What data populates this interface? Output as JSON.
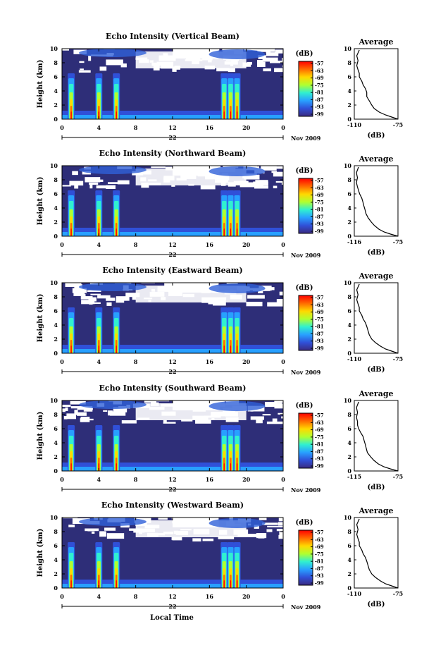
{
  "figure": {
    "xlabel": "Local Time",
    "ylabel": "Height (km)",
    "date_label": "Nov 2009",
    "day_label": "22",
    "colorbar_unit": "(dB)",
    "colorbar_ticks": [
      "-57",
      "-63",
      "-69",
      "-75",
      "-81",
      "-87",
      "-93",
      "-99"
    ],
    "colorbar_colors": [
      "#ff0000",
      "#ff6a00",
      "#ffd800",
      "#b0ff30",
      "#30f0d0",
      "#28a0ff",
      "#3050d8",
      "#3a2a80"
    ],
    "panel_bg": "#2e2e78",
    "profile_title": "Average",
    "profile_xlabel": "(dB)"
  },
  "chart_data": [
    {
      "type": "heatmap",
      "title": "Echo Intensity (Vertical Beam)",
      "ylabel": "Height (km)",
      "x_ticks": [
        "0",
        "4",
        "8",
        "12",
        "16",
        "20",
        "0"
      ],
      "y_ticks": [
        "0",
        "2",
        "4",
        "6",
        "8",
        "10"
      ],
      "xlim": [
        0,
        24
      ],
      "ylim": [
        0,
        10
      ],
      "clim": [
        -99,
        -57
      ],
      "convective_cells_hours": [
        1.0,
        4.0,
        5.9,
        17.6,
        18.3,
        19.0
      ],
      "profile": {
        "type": "line",
        "title": "Average",
        "x_ticks": [
          "-110",
          "-75"
        ],
        "xlim": [
          -110,
          -75
        ],
        "x": [
          -75,
          -80,
          -85,
          -90,
          -94,
          -96,
          -98,
          -100,
          -100,
          -101,
          -103,
          -104,
          -106,
          -106,
          -107,
          -108,
          -107,
          -108,
          -106
        ],
        "y": [
          0,
          0.3,
          0.6,
          1.0,
          1.5,
          2.0,
          2.6,
          3.2,
          3.8,
          4.3,
          4.9,
          5.4,
          6.0,
          6.5,
          7.0,
          7.6,
          8.3,
          9.0,
          9.8
        ]
      }
    },
    {
      "type": "heatmap",
      "title": "Echo Intensity (Northward Beam)",
      "ylabel": "Height (km)",
      "x_ticks": [
        "0",
        "4",
        "8",
        "12",
        "16",
        "20",
        "0"
      ],
      "y_ticks": [
        "0",
        "2",
        "4",
        "6",
        "8",
        "10"
      ],
      "xlim": [
        0,
        24
      ],
      "ylim": [
        0,
        10
      ],
      "clim": [
        -99,
        -57
      ],
      "convective_cells_hours": [
        1.0,
        4.0,
        5.9,
        17.6,
        18.3,
        19.0
      ],
      "profile": {
        "type": "line",
        "title": "Average",
        "x_ticks": [
          "-116",
          "-75"
        ],
        "xlim": [
          -116,
          -75
        ],
        "x": [
          -75,
          -82,
          -88,
          -93,
          -97,
          -100,
          -103,
          -105,
          -106,
          -107,
          -108,
          -109,
          -111,
          -112,
          -113,
          -114,
          -113,
          -114,
          -112
        ],
        "y": [
          0,
          0.3,
          0.6,
          1.0,
          1.5,
          2.0,
          2.6,
          3.2,
          3.8,
          4.3,
          4.9,
          5.4,
          6.0,
          6.5,
          7.0,
          7.6,
          8.3,
          9.0,
          9.8
        ]
      }
    },
    {
      "type": "heatmap",
      "title": "Echo Intensity (Eastward Beam)",
      "ylabel": "Height (km)",
      "x_ticks": [
        "0",
        "4",
        "8",
        "12",
        "16",
        "20",
        "0"
      ],
      "y_ticks": [
        "0",
        "2",
        "4",
        "6",
        "8",
        "10"
      ],
      "xlim": [
        0,
        24
      ],
      "ylim": [
        0,
        10
      ],
      "clim": [
        -99,
        -57
      ],
      "convective_cells_hours": [
        1.0,
        4.0,
        5.9,
        17.6,
        18.3,
        19.0
      ],
      "profile": {
        "type": "line",
        "title": "Average",
        "x_ticks": [
          "-110",
          "-75"
        ],
        "xlim": [
          -110,
          -75
        ],
        "x": [
          -75,
          -80,
          -85,
          -89,
          -93,
          -96,
          -98,
          -99,
          -100,
          -101,
          -103,
          -104,
          -106,
          -106,
          -107,
          -108,
          -107,
          -108,
          -106
        ],
        "y": [
          0,
          0.3,
          0.6,
          1.0,
          1.5,
          2.0,
          2.6,
          3.2,
          3.8,
          4.3,
          4.9,
          5.4,
          6.0,
          6.5,
          7.0,
          7.6,
          8.3,
          9.0,
          9.8
        ]
      }
    },
    {
      "type": "heatmap",
      "title": "Echo Intensity (Southward Beam)",
      "ylabel": "Height (km)",
      "x_ticks": [
        "0",
        "4",
        "8",
        "12",
        "16",
        "20",
        "0"
      ],
      "y_ticks": [
        "0",
        "2",
        "4",
        "6",
        "8",
        "10"
      ],
      "xlim": [
        0,
        24
      ],
      "ylim": [
        0,
        10
      ],
      "clim": [
        -99,
        -57
      ],
      "convective_cells_hours": [
        1.0,
        4.0,
        5.9,
        17.6,
        18.3,
        19.0
      ],
      "profile": {
        "type": "line",
        "title": "Average",
        "x_ticks": [
          "-115",
          "-75"
        ],
        "xlim": [
          -115,
          -75
        ],
        "x": [
          -75,
          -82,
          -88,
          -93,
          -97,
          -100,
          -103,
          -104,
          -105,
          -106,
          -107,
          -109,
          -111,
          -112,
          -112,
          -113,
          -112,
          -113,
          -111
        ],
        "y": [
          0,
          0.3,
          0.6,
          1.0,
          1.5,
          2.0,
          2.6,
          3.2,
          3.8,
          4.3,
          4.9,
          5.4,
          6.0,
          6.5,
          7.0,
          7.6,
          8.3,
          9.0,
          9.8
        ]
      }
    },
    {
      "type": "heatmap",
      "title": "Echo Intensity (Westward Beam)",
      "ylabel": "Height (km)",
      "x_ticks": [
        "0",
        "4",
        "8",
        "12",
        "16",
        "20",
        "0"
      ],
      "y_ticks": [
        "0",
        "2",
        "4",
        "6",
        "8",
        "10"
      ],
      "xlim": [
        0,
        24
      ],
      "ylim": [
        0,
        10
      ],
      "clim": [
        -99,
        -57
      ],
      "convective_cells_hours": [
        1.0,
        4.0,
        5.9,
        17.6,
        18.3,
        19.0
      ],
      "profile": {
        "type": "line",
        "title": "Average",
        "x_ticks": [
          "-110",
          "-75"
        ],
        "xlim": [
          -110,
          -75
        ],
        "x": [
          -75,
          -80,
          -85,
          -89,
          -93,
          -96,
          -98,
          -99,
          -100,
          -101,
          -103,
          -104,
          -106,
          -106,
          -107,
          -108,
          -107,
          -108,
          -106
        ],
        "y": [
          0,
          0.3,
          0.6,
          1.0,
          1.5,
          2.0,
          2.6,
          3.2,
          3.8,
          4.3,
          4.9,
          5.4,
          6.0,
          6.5,
          7.0,
          7.6,
          8.3,
          9.0,
          9.8
        ]
      }
    }
  ]
}
